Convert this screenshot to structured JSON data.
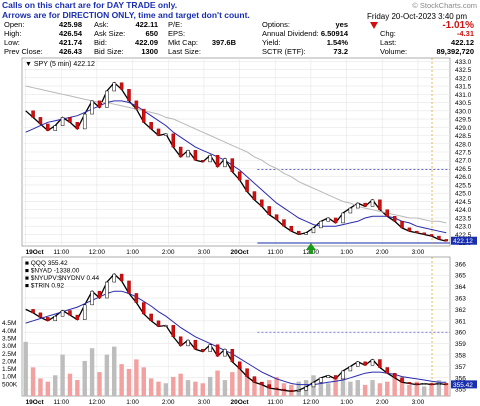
{
  "notes": {
    "line1": "Calls on this chart are for DAY TRADE only.",
    "line2": "Arrows are for DIRECTION ONLY, time and target don't count."
  },
  "credit": "© StockCharts.com",
  "header": {
    "date": "Friday  20-Oct-2023  3:40 pm",
    "change_pct": "-1.01%",
    "change_color": "#d01010"
  },
  "quote": {
    "open": {
      "label": "Open:",
      "value": "425.98"
    },
    "high": {
      "label": "High:",
      "value": "426.54"
    },
    "low": {
      "label": "Low:",
      "value": "421.74"
    },
    "prev_close": {
      "label": "Prev Close:",
      "value": "426.43"
    },
    "ask": {
      "label": "Ask:",
      "value": "422.11"
    },
    "ask_size": {
      "label": "Ask Size:",
      "value": "650"
    },
    "bid": {
      "label": "Bid:",
      "value": "422.09"
    },
    "bid_size": {
      "label": "Bid Size:",
      "value": "1300"
    },
    "pe": {
      "label": "P/E:",
      "value": ""
    },
    "eps": {
      "label": "EPS:",
      "value": ""
    },
    "mkt_cap": {
      "label": "Mkt Cap:",
      "value": "397.6B"
    },
    "last_size": {
      "label": "Last Size:",
      "value": ""
    },
    "options": {
      "label": "Options:",
      "value": "yes"
    },
    "annual_div": {
      "label": "Annual Dividend:",
      "value": "6.50914"
    },
    "yield": {
      "label": "Yield:",
      "value": "1.54%"
    },
    "sctr": {
      "label": "SCTR (ETF):",
      "value": "73.2"
    },
    "chg": {
      "label": "Chg:",
      "value": "-4.31"
    },
    "last": {
      "label": "Last:",
      "value": "422.12"
    },
    "volume": {
      "label": "Volume:",
      "value": "89,392,720"
    }
  },
  "chart_data": [
    {
      "type": "line",
      "legend": "SPY (5 min) 422.12",
      "y_ticks": [
        "433.0",
        "432.5",
        "432.0",
        "431.5",
        "431.0",
        "430.5",
        "430.0",
        "429.5",
        "429.0",
        "428.5",
        "428.0",
        "427.5",
        "427.0",
        "426.5",
        "426.0",
        "425.5",
        "425.0",
        "424.5",
        "424.0",
        "423.5",
        "423.0",
        "422.5",
        "422.0"
      ],
      "ylim": [
        421.8,
        433.2
      ],
      "x_ticks": [
        "19Oct",
        "11:00",
        "12:00",
        "1:00",
        "2:00",
        "3:00",
        "20Oct",
        "11:00",
        "12:00",
        "1:00",
        "2:00",
        "3:00"
      ],
      "last_price": 422.12,
      "prev_close_level": 426.43,
      "low_level": 421.98,
      "up_arrow_at": "20Oct 12:00",
      "up_arrow_color": "#1a9a1a",
      "series": [
        {
          "values": [
            430.0,
            429.6,
            429.2,
            428.8,
            429.1,
            429.6,
            429.3,
            428.9,
            429.8,
            430.6,
            430.2,
            431.2,
            431.7,
            431.3,
            430.6,
            430.1,
            429.3,
            428.9,
            428.5,
            428.6,
            427.8,
            427.2,
            427.6,
            427.0,
            426.9,
            427.3,
            426.6,
            427.1,
            426.3,
            425.8,
            425.1,
            424.6,
            424.2,
            423.7,
            423.4,
            423.0,
            422.7,
            422.5,
            422.6,
            422.9,
            423.3,
            423.5,
            423.2,
            423.8,
            424.1,
            424.4,
            424.2,
            424.6,
            424.0,
            423.6,
            423.3,
            422.9,
            422.7,
            422.6,
            422.5,
            422.4,
            422.2,
            422.1
          ]
        },
        {
          "values": [
            428.7,
            428.9,
            429.1,
            429.3,
            429.4,
            429.5,
            429.6,
            429.7,
            429.9,
            430.1,
            430.3,
            430.5,
            430.6,
            430.6,
            430.5,
            430.3,
            430.0,
            429.7,
            429.4,
            429.1,
            428.7,
            428.4,
            428.1,
            427.8,
            427.6,
            427.4,
            427.2,
            427.0,
            426.7,
            426.4,
            426.0,
            425.6,
            425.2,
            424.8,
            424.4,
            424.1,
            423.8,
            423.5,
            423.3,
            423.1,
            423.0,
            423.0,
            423.0,
            423.1,
            423.2,
            423.3,
            423.5,
            423.6,
            423.6,
            423.6,
            423.5,
            423.3,
            423.2,
            423.0,
            422.9,
            422.8,
            422.7,
            422.6
          ]
        },
        {
          "values": [
            431.5,
            431.4,
            431.3,
            431.2,
            431.1,
            431.0,
            430.9,
            430.8,
            430.7,
            430.6,
            430.5,
            430.5,
            430.4,
            430.3,
            430.2,
            430.1,
            430.0,
            429.9,
            429.8,
            429.6,
            429.5,
            429.3,
            429.1,
            428.9,
            428.7,
            428.5,
            428.3,
            428.1,
            427.9,
            427.7,
            427.5,
            427.2,
            427.0,
            426.7,
            426.5,
            426.2,
            426.0,
            425.7,
            425.5,
            425.3,
            425.1,
            424.9,
            424.7,
            424.5,
            424.4,
            424.2,
            424.1,
            424.0,
            423.9,
            423.8,
            423.7,
            423.6,
            423.5,
            423.5,
            423.4,
            423.3,
            423.3,
            423.2
          ]
        }
      ]
    },
    {
      "type": "line",
      "legend": [
        "QQQ 355.42",
        "$NYAD -1338.00",
        "$NYUPV:$NYDNV 0.44",
        "$TRIN 0.92"
      ],
      "y_ticks": [
        "366",
        "365",
        "364",
        "363",
        "362",
        "361",
        "360",
        "359",
        "358",
        "357",
        "356",
        "355"
      ],
      "ylim": [
        354.4,
        366.6
      ],
      "volume_ticks": [
        "4.5M",
        "4.0M",
        "3.5M",
        "3.0M",
        "2.5M",
        "2.0M",
        "1.5M",
        "1.0M",
        "500K"
      ],
      "volume_lim": [
        0,
        4800000
      ],
      "x_ticks": [
        "19Oct",
        "11:00",
        "12:00",
        "1:00",
        "2:00",
        "3:00",
        "20Oct",
        "11:00",
        "12:00",
        "1:00",
        "2:00",
        "3:00"
      ],
      "last_price": 355.42,
      "prev_close_level": 360.0,
      "series": [
        {
          "values": [
            362.0,
            361.7,
            361.3,
            361.0,
            361.4,
            361.9,
            361.5,
            361.1,
            362.4,
            363.6,
            363.0,
            364.4,
            365.1,
            364.5,
            363.4,
            362.6,
            361.6,
            361.0,
            360.5,
            360.6,
            359.6,
            358.8,
            359.3,
            358.5,
            358.3,
            358.9,
            357.9,
            358.5,
            357.4,
            356.8,
            356.1,
            355.6,
            355.4,
            355.1,
            355.0,
            354.9,
            354.8,
            354.9,
            355.2,
            355.6,
            356.0,
            356.2,
            355.9,
            356.6,
            357.0,
            357.4,
            357.1,
            357.6,
            356.9,
            356.4,
            356.0,
            355.6,
            355.5,
            355.4,
            355.5,
            355.4,
            355.5,
            355.4
          ]
        },
        {
          "values": [
            360.8,
            361.0,
            361.2,
            361.4,
            361.6,
            361.8,
            362.0,
            362.2,
            362.5,
            362.8,
            363.1,
            363.4,
            363.6,
            363.6,
            363.4,
            363.1,
            362.7,
            362.3,
            361.8,
            361.4,
            360.9,
            360.4,
            360.0,
            359.6,
            359.3,
            359.0,
            358.7,
            358.4,
            358.1,
            357.7,
            357.3,
            356.9,
            356.5,
            356.2,
            355.9,
            355.7,
            355.5,
            355.4,
            355.4,
            355.4,
            355.5,
            355.6,
            355.7,
            355.8,
            356.0,
            356.2,
            356.4,
            356.5,
            356.5,
            356.4,
            356.3,
            356.1,
            356.0,
            355.9,
            355.8,
            355.7,
            355.6,
            355.6
          ]
        }
      ],
      "volume": [
        3400000,
        1800000,
        1100000,
        900000,
        1300000,
        2600000,
        1400000,
        1000000,
        2200000,
        3000000,
        1500000,
        2600000,
        3100000,
        2000000,
        1700000,
        2300000,
        1800000,
        1100000,
        900000,
        800000,
        1200000,
        1400000,
        1000000,
        900000,
        800000,
        1200000,
        1600000,
        1000000,
        1500000,
        1900000,
        1300000,
        1100000,
        900000,
        1000000,
        1200000,
        800000,
        700000,
        900000,
        1000000,
        1300000,
        900000,
        800000,
        1100000,
        1300000,
        900000,
        1000000,
        700000,
        1000000,
        800000,
        900000,
        1400000,
        1100000,
        700000,
        900000,
        600000,
        800000,
        1000000,
        800000
      ]
    }
  ]
}
